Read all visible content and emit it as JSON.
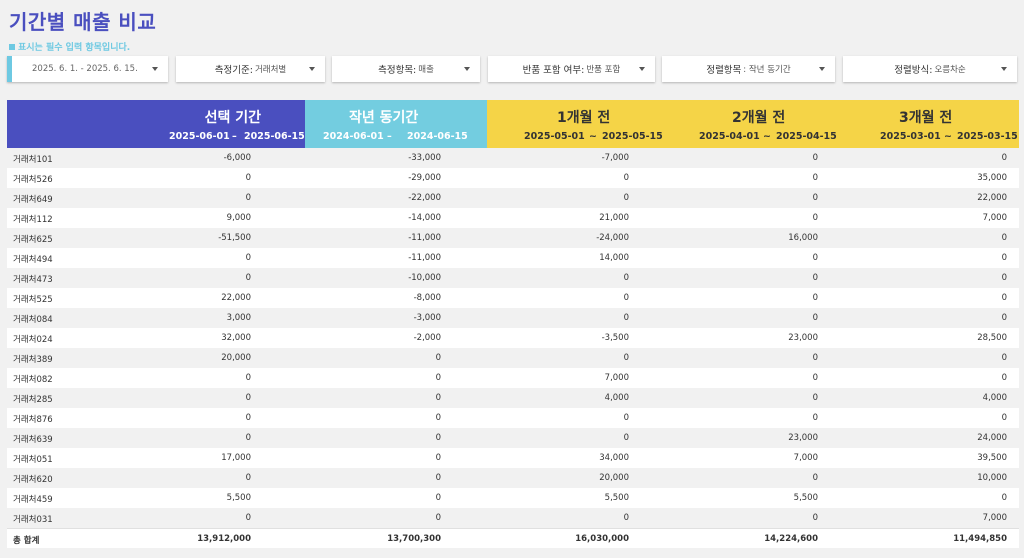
{
  "title": "기간별 매출 비교",
  "required_note": "표시는 필수 입력 항목입니다.",
  "filters": {
    "date_range": "2025. 6. 1. - 2025. 6. 15.",
    "basis_label": "측정기준:",
    "basis_value": "거래처별",
    "metric_label": "측정항목:",
    "metric_value": "매출",
    "returns_label": "반품 포함 여부:",
    "returns_value": "반품 포함",
    "sort_item_label": "정렬항목",
    "sort_item_value": ": 작년 동기간",
    "sort_order_label": "정렬방식:",
    "sort_order_value": "오름차순"
  },
  "columns": [
    {
      "title": "선택 기간",
      "from": "2025-06-01",
      "to": "2025-06-15"
    },
    {
      "title": "작년 동기간",
      "from": "2024-06-01",
      "to": "2024-06-15"
    },
    {
      "title": "1개월 전",
      "from": "2025-05-01",
      "to": "2025-05-15"
    },
    {
      "title": "2개월 전",
      "from": "2025-04-01",
      "to": "2025-04-15"
    },
    {
      "title": "3개월 전",
      "from": "2025-03-01",
      "to": "2025-03-15"
    }
  ],
  "separator_dash": "–",
  "separator_tilde": "~",
  "rows": [
    {
      "name": "거래처101",
      "v": [
        "-6,000",
        "-33,000",
        "-7,000",
        "0",
        "0"
      ]
    },
    {
      "name": "거래처526",
      "v": [
        "0",
        "-29,000",
        "0",
        "0",
        "35,000"
      ]
    },
    {
      "name": "거래처649",
      "v": [
        "0",
        "-22,000",
        "0",
        "0",
        "22,000"
      ]
    },
    {
      "name": "거래처112",
      "v": [
        "9,000",
        "-14,000",
        "21,000",
        "0",
        "7,000"
      ]
    },
    {
      "name": "거래처625",
      "v": [
        "-51,500",
        "-11,000",
        "-24,000",
        "16,000",
        "0"
      ]
    },
    {
      "name": "거래처494",
      "v": [
        "0",
        "-11,000",
        "14,000",
        "0",
        "0"
      ]
    },
    {
      "name": "거래처473",
      "v": [
        "0",
        "-10,000",
        "0",
        "0",
        "0"
      ]
    },
    {
      "name": "거래처525",
      "v": [
        "22,000",
        "-8,000",
        "0",
        "0",
        "0"
      ]
    },
    {
      "name": "거래처084",
      "v": [
        "3,000",
        "-3,000",
        "0",
        "0",
        "0"
      ]
    },
    {
      "name": "거래처024",
      "v": [
        "32,000",
        "-2,000",
        "-3,500",
        "23,000",
        "28,500"
      ]
    },
    {
      "name": "거래처389",
      "v": [
        "20,000",
        "0",
        "0",
        "0",
        "0"
      ]
    },
    {
      "name": "거래처082",
      "v": [
        "0",
        "0",
        "7,000",
        "0",
        "0"
      ]
    },
    {
      "name": "거래처285",
      "v": [
        "0",
        "0",
        "4,000",
        "0",
        "4,000"
      ]
    },
    {
      "name": "거래처876",
      "v": [
        "0",
        "0",
        "0",
        "0",
        "0"
      ]
    },
    {
      "name": "거래처639",
      "v": [
        "0",
        "0",
        "0",
        "23,000",
        "24,000"
      ]
    },
    {
      "name": "거래처051",
      "v": [
        "17,000",
        "0",
        "34,000",
        "7,000",
        "39,500"
      ]
    },
    {
      "name": "거래처620",
      "v": [
        "0",
        "0",
        "20,000",
        "0",
        "10,000"
      ]
    },
    {
      "name": "거래처459",
      "v": [
        "5,500",
        "0",
        "5,500",
        "5,500",
        "0"
      ]
    },
    {
      "name": "거래처031",
      "v": [
        "0",
        "0",
        "0",
        "0",
        "7,000"
      ]
    }
  ],
  "total": {
    "name": "총 합계",
    "v": [
      "13,912,000",
      "13,700,300",
      "16,030,000",
      "14,224,600",
      "11,494,850"
    ]
  },
  "colors": {
    "title": "#4a4fbf",
    "selected": "#4a4fbf",
    "last_year": "#73cde0",
    "months": "#f5d447"
  }
}
